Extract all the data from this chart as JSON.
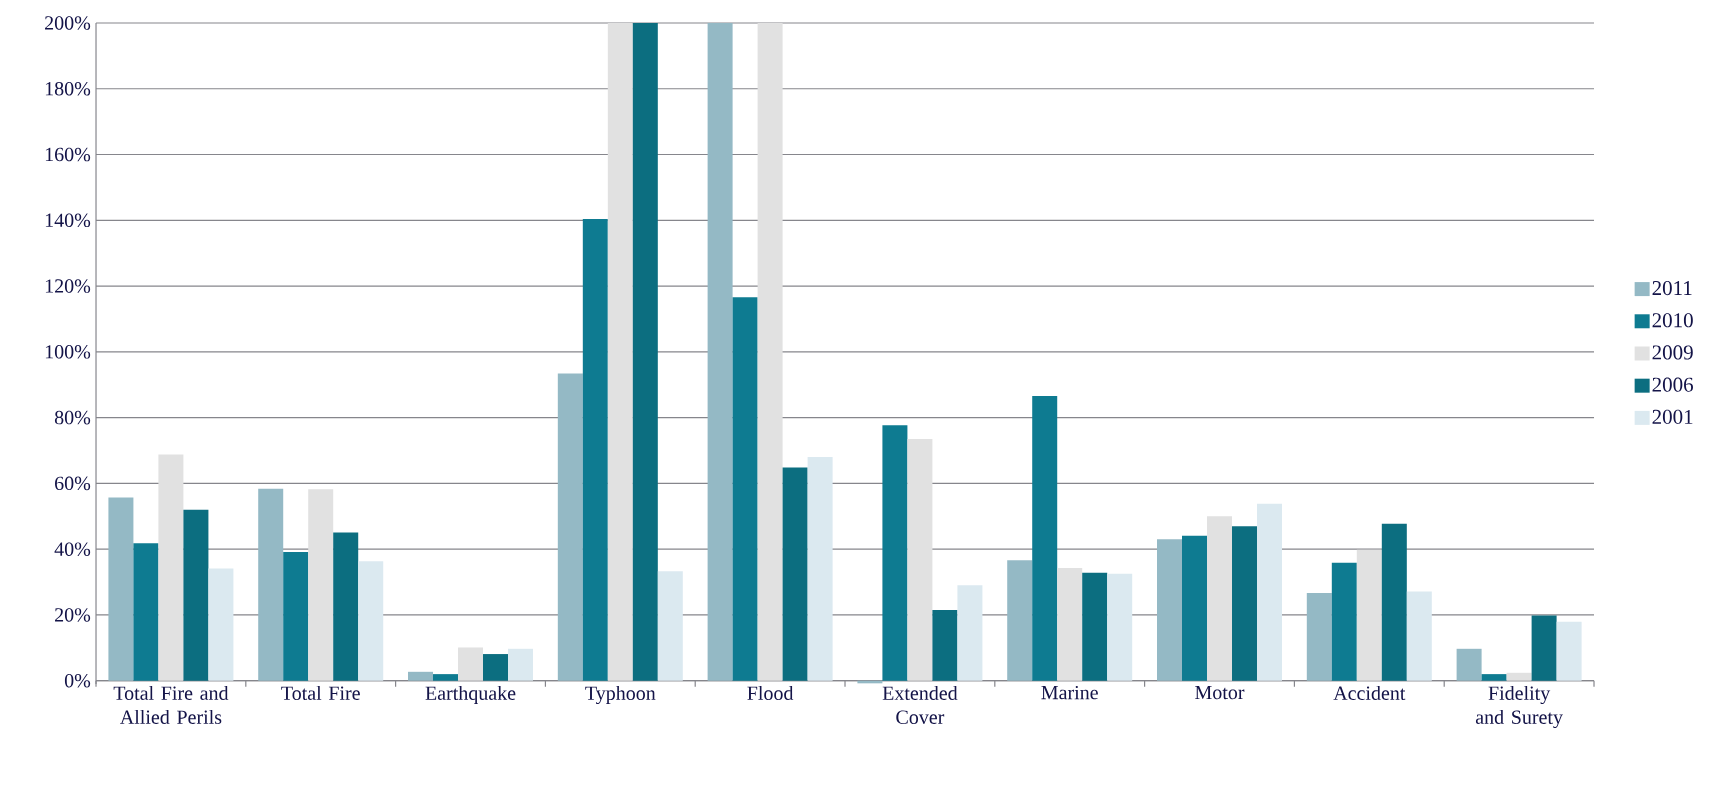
{
  "chart_data": {
    "type": "bar",
    "categories": [
      "Total Fire and Allied Perils",
      "Total Fire",
      "Earthquake",
      "Typhoon",
      "Flood",
      "Extended Cover",
      "Marine",
      "Motor",
      "Accident",
      "Fidelity and Surety"
    ],
    "series": [
      {
        "name": "2011",
        "color": "#94b9c5",
        "values": [
          55.7,
          58.4,
          2.7,
          93.4,
          200,
          -0.8,
          36.6,
          43.0,
          26.7,
          9.7
        ]
      },
      {
        "name": "2010",
        "color": "#0e7b91",
        "values": [
          41.8,
          39.1,
          2.0,
          140.4,
          116.6,
          77.7,
          86.6,
          44.1,
          35.9,
          2.0
        ]
      },
      {
        "name": "2009",
        "color": "#e1e1e1",
        "values": [
          68.8,
          58.2,
          10.1,
          200,
          200,
          73.5,
          34.3,
          50.0,
          39.8,
          2.4
        ]
      },
      {
        "name": "2006",
        "color": "#0c6e80",
        "values": [
          52.0,
          45.1,
          8.1,
          200,
          64.8,
          21.5,
          32.8,
          47.0,
          47.7,
          19.8
        ]
      },
      {
        "name": "2001",
        "color": "#dbe9f0",
        "values": [
          34.1,
          36.3,
          9.7,
          33.3,
          68.0,
          29.0,
          32.5,
          53.8,
          27.1,
          17.9
        ]
      }
    ],
    "ylim": [
      -1,
      200
    ],
    "yticks": [
      {
        "value": 0,
        "label": "0%"
      },
      {
        "value": 20,
        "label": "20%"
      },
      {
        "value": 40,
        "label": "40%"
      },
      {
        "value": 60,
        "label": "60%"
      },
      {
        "value": 80,
        "label": "80%"
      },
      {
        "value": 100,
        "label": "100%"
      },
      {
        "value": 120,
        "label": "120%"
      },
      {
        "value": 140,
        "label": "140%"
      },
      {
        "value": 160,
        "label": "160%"
      },
      {
        "value": 180,
        "label": "180%"
      },
      {
        "value": 200,
        "label": "200%"
      }
    ],
    "grid": "y",
    "legend": "right"
  }
}
